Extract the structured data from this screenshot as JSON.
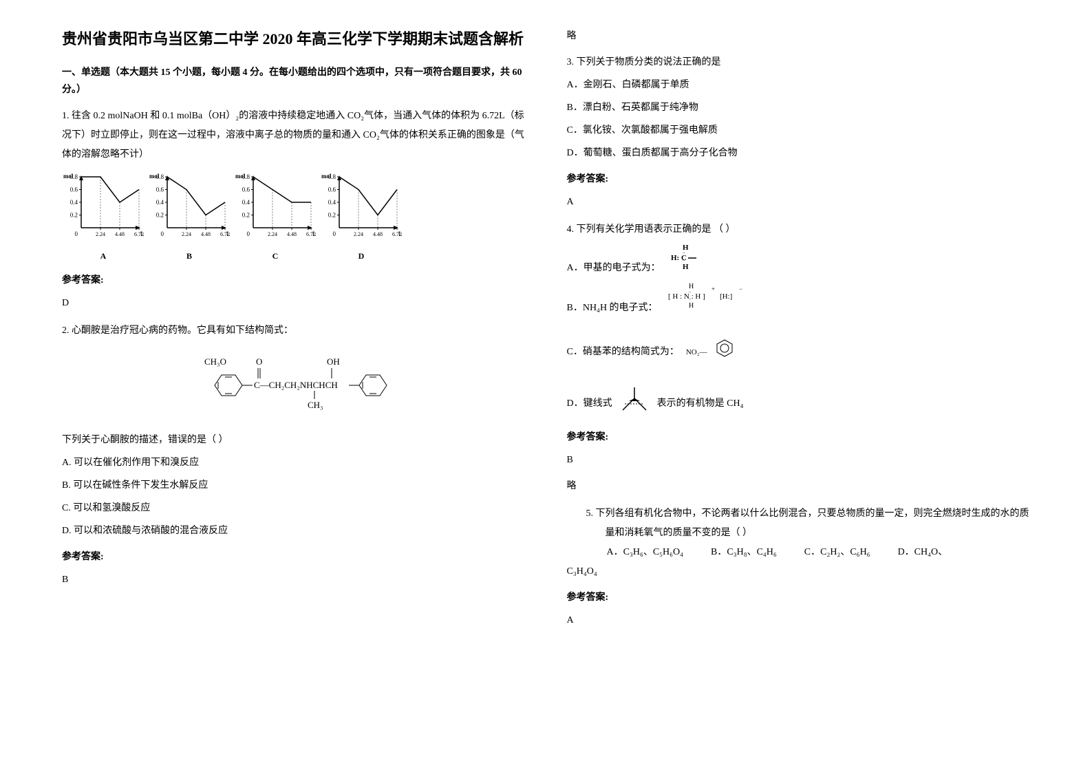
{
  "title": "贵州省贵阳市乌当区第二中学 2020 年高三化学下学期期末试题含解析",
  "section1_header": "一、单选题（本大题共 15 个小题，每小题 4 分。在每小题给出的四个选项中，只有一项符合题目要求，共 60 分。）",
  "q1": {
    "text": "1. 往含 0.2 molNaOH 和 0.1 molBa（OH）₂的溶液中持续稳定地通入 CO₂气体，当通入气体的体积为 6.72L（标况下）时立即停止，则在这一过程中，溶液中离子总的物质的量和通入 CO₂气体的体积关系正确的图象是（气体的溶解忽略不计）",
    "graphs": {
      "ylabel": "mol",
      "ymax": 0.8,
      "yticks": [
        0.2,
        0.4,
        0.6,
        0.8
      ],
      "xticks": [
        2.24,
        4.48,
        6.72
      ],
      "xlabel_suffix": "L",
      "width": 120,
      "height": 100,
      "axis_color": "#000000",
      "line_color": "#000000",
      "labels": [
        "A",
        "B",
        "C",
        "D"
      ],
      "series": {
        "A": [
          [
            0,
            0.8
          ],
          [
            2.24,
            0.8
          ],
          [
            4.48,
            0.4
          ],
          [
            6.72,
            0.6
          ]
        ],
        "B": [
          [
            0,
            0.8
          ],
          [
            2.24,
            0.6
          ],
          [
            4.48,
            0.2
          ],
          [
            6.72,
            0.4
          ]
        ],
        "C": [
          [
            0,
            0.8
          ],
          [
            2.24,
            0.6
          ],
          [
            4.48,
            0.4
          ],
          [
            6.72,
            0.4
          ]
        ],
        "D": [
          [
            0,
            0.8
          ],
          [
            2.24,
            0.6
          ],
          [
            4.48,
            0.2
          ],
          [
            6.72,
            0.6
          ]
        ]
      }
    },
    "answer_label": "参考答案:",
    "answer": "D"
  },
  "q2": {
    "intro": "2. 心酮胺是治疗冠心病的药物。它具有如下结构简式：",
    "formula": {
      "left_group": "CH₃O",
      "middle": "C—CH₂CH₂NHCHCH",
      "top_o": "O",
      "top_oh": "OH",
      "bottom_ch3": "CH₃",
      "ring_color": "#000000"
    },
    "stem": "下列关于心酮胺的描述，错误的是（  ）",
    "options": {
      "A": "A. 可以在催化剂作用下和溴反应",
      "B": "B. 可以在碱性条件下发生水解反应",
      "C": "C. 可以和氢溴酸反应",
      "D": "D. 可以和浓硫酸与浓硝酸的混合液反应"
    },
    "answer_label": "参考答案:",
    "answer": "B"
  },
  "col2_top": "略",
  "q3": {
    "stem": "3. 下列关于物质分类的说法正确的是",
    "options": {
      "A": "A．金刚石、白磷都属于单质",
      "B": "B．漂白粉、石英都属于纯净物",
      "C": "C．氯化铵、次氯酸都属于强电解质",
      "D": "D．葡萄糖、蛋白质都属于高分子化合物"
    },
    "answer_label": "参考答案:",
    "answer": "A"
  },
  "q4": {
    "stem": "4. 下列有关化学用语表示正确的是   （   ）",
    "optA_text": "A．甲基的电子式为：",
    "optA_formula": "H:C—  (H above, H below)",
    "optB_text": "B．NH₄H 的电子式：",
    "optB_formula": "[H:N:H]⁺[H:]⁻ (H above, H below)",
    "optC_text": "C．硝基苯的结构简式为：",
    "optC_no2": "NO₂—",
    "optD_text_prefix": "D．键线式",
    "optD_text_suffix": "表示的有机物是 CH₄",
    "answer_label": "参考答案:",
    "answer": "B",
    "extra": "略"
  },
  "q5": {
    "stem": "5. 下列各组有机化合物中，不论两者以什么比例混合，只要总物质的量一定，则完全燃烧时生成的水的质量和消耗氧气的质量不变的是（   ）",
    "options": {
      "A": "A．C₃H₆、C₅H₆O₄",
      "B": "B．C₃H₈、C₄H₆",
      "C": "C．C₂H₂、C₆H₆",
      "D_prefix": "D．CH₄O、",
      "D_cont": "C₃H₄O₄"
    },
    "answer_label": "参考答案:",
    "answer": "A"
  }
}
